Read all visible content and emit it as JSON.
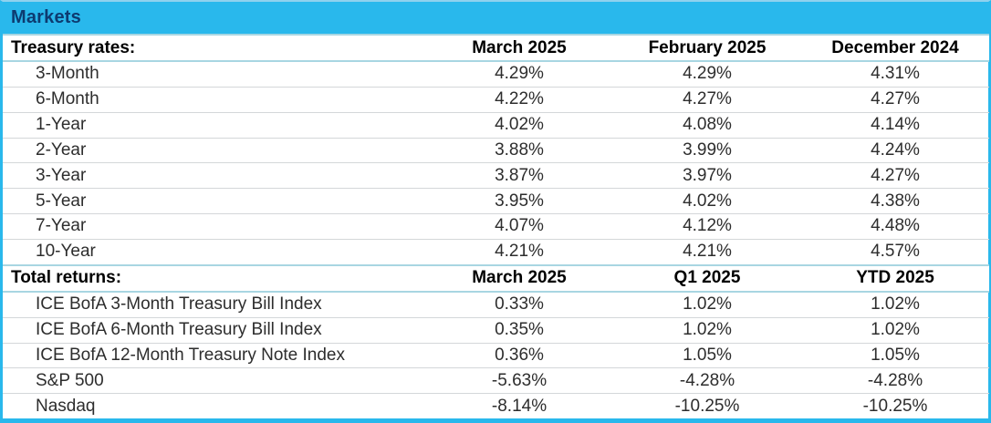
{
  "header": {
    "title": "Markets"
  },
  "chart_data": {
    "type": "table",
    "title": "Markets",
    "sections": [
      {
        "label": "Treasury rates:",
        "columns": [
          "March 2025",
          "February 2025",
          "December 2024"
        ],
        "rows": [
          {
            "label": "3-Month",
            "values": [
              "4.29%",
              "4.29%",
              "4.31%"
            ]
          },
          {
            "label": "6-Month",
            "values": [
              "4.22%",
              "4.27%",
              "4.27%"
            ]
          },
          {
            "label": "1-Year",
            "values": [
              "4.02%",
              "4.08%",
              "4.14%"
            ]
          },
          {
            "label": "2-Year",
            "values": [
              "3.88%",
              "3.99%",
              "4.24%"
            ]
          },
          {
            "label": "3-Year",
            "values": [
              "3.87%",
              "3.97%",
              "4.27%"
            ]
          },
          {
            "label": "5-Year",
            "values": [
              "3.95%",
              "4.02%",
              "4.38%"
            ]
          },
          {
            "label": "7-Year",
            "values": [
              "4.07%",
              "4.12%",
              "4.48%"
            ]
          },
          {
            "label": "10-Year",
            "values": [
              "4.21%",
              "4.21%",
              "4.57%"
            ]
          }
        ]
      },
      {
        "label": "Total returns:",
        "columns": [
          "March 2025",
          "Q1 2025",
          "YTD 2025"
        ],
        "rows": [
          {
            "label": "ICE BofA 3-Month Treasury Bill Index",
            "values": [
              "0.33%",
              "1.02%",
              "1.02%"
            ]
          },
          {
            "label": "ICE BofA 6-Month Treasury Bill Index",
            "values": [
              "0.35%",
              "1.02%",
              "1.02%"
            ]
          },
          {
            "label": "ICE BofA 12-Month Treasury Note Index",
            "values": [
              "0.36%",
              "1.05%",
              "1.05%"
            ]
          },
          {
            "label": "S&P 500",
            "values": [
              "-5.63%",
              "-4.28%",
              "-4.28%"
            ]
          },
          {
            "label": "Nasdaq",
            "values": [
              "-8.14%",
              "-10.25%",
              "-10.25%"
            ]
          }
        ]
      }
    ]
  },
  "colors": {
    "accent_cyan": "#29B8EC",
    "title_text": "#0D3B70",
    "section_divider": "#A8D6E2",
    "row_divider": "#D4D7D9",
    "body_text": "#2D2D2D"
  }
}
